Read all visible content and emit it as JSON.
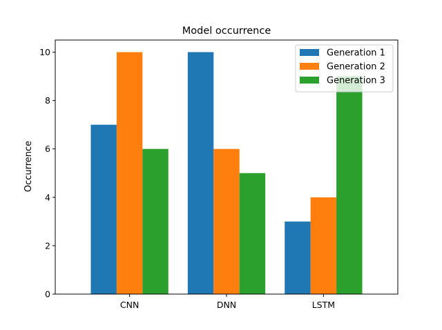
{
  "chart_data": {
    "type": "bar",
    "title": "Model occurrence",
    "xlabel": "",
    "ylabel": "Occurrence",
    "categories": [
      "CNN",
      "DNN",
      "LSTM"
    ],
    "series": [
      {
        "name": "Generation 1",
        "values": [
          7,
          10,
          3
        ],
        "color": "#1f77b4"
      },
      {
        "name": "Generation 2",
        "values": [
          10,
          6,
          4
        ],
        "color": "#ff7f0e"
      },
      {
        "name": "Generation 3",
        "values": [
          6,
          5,
          9
        ],
        "color": "#2ca02c"
      }
    ],
    "ylim": [
      0,
      10.5
    ],
    "yticks": [
      0,
      2,
      4,
      6,
      8,
      10
    ],
    "grid": false,
    "legend": "top-right"
  }
}
